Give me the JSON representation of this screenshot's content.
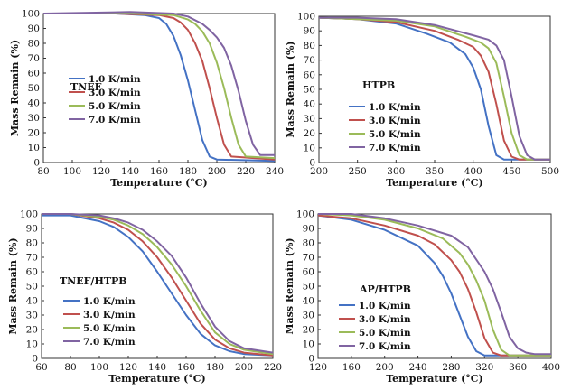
{
  "colors": {
    "1.0 K/min": "#4472c4",
    "3.0 K/min": "#c0504d",
    "5.0 K/min": "#9bbb59",
    "7.0 K/min": "#8064a2"
  },
  "chart_data": [
    {
      "type": "line",
      "title": "TNEF",
      "xlabel": "Temperature (°C)",
      "ylabel": "Mass Remain (%)",
      "xlim": [
        80,
        240
      ],
      "ylim": [
        0,
        100
      ],
      "xticks": [
        80,
        100,
        120,
        140,
        160,
        180,
        200,
        220,
        240
      ],
      "yticks": [
        0,
        10,
        20,
        30,
        40,
        50,
        60,
        70,
        80,
        90,
        100
      ],
      "legend": "middle-left",
      "series": [
        {
          "name": "1.0 K/min",
          "x": [
            80,
            130,
            150,
            160,
            165,
            170,
            175,
            180,
            185,
            190,
            195,
            200,
            240
          ],
          "y": [
            100,
            100,
            99,
            97,
            93,
            85,
            72,
            55,
            35,
            15,
            4,
            2,
            1
          ]
        },
        {
          "name": "3.0 K/min",
          "x": [
            80,
            130,
            160,
            170,
            175,
            180,
            185,
            190,
            195,
            200,
            205,
            210,
            240
          ],
          "y": [
            100,
            100,
            99,
            97,
            94,
            89,
            80,
            68,
            50,
            30,
            12,
            4,
            2
          ]
        },
        {
          "name": "5.0 K/min",
          "x": [
            80,
            140,
            170,
            180,
            185,
            190,
            195,
            200,
            205,
            210,
            215,
            220,
            240
          ],
          "y": [
            100,
            100,
            99,
            96,
            93,
            88,
            80,
            67,
            50,
            30,
            12,
            4,
            3
          ]
        },
        {
          "name": "7.0 K/min",
          "x": [
            80,
            140,
            170,
            180,
            190,
            195,
            200,
            205,
            210,
            215,
            220,
            225,
            230,
            240
          ],
          "y": [
            100,
            101,
            100,
            98,
            93,
            89,
            84,
            77,
            65,
            48,
            28,
            12,
            5,
            5
          ]
        }
      ]
    },
    {
      "type": "line",
      "title": "HTPB",
      "xlabel": "Temperature (°C)",
      "ylabel": "Mass Remain (%)",
      "xlim": [
        200,
        500
      ],
      "ylim": [
        0,
        100
      ],
      "xticks": [
        200,
        250,
        300,
        350,
        400,
        450,
        500
      ],
      "yticks": [
        0,
        10,
        20,
        30,
        40,
        50,
        60,
        70,
        80,
        90,
        100
      ],
      "legend": "middle-center",
      "series": [
        {
          "name": "1.0 K/min",
          "x": [
            200,
            250,
            300,
            340,
            370,
            390,
            400,
            410,
            420,
            430,
            440,
            450,
            500
          ],
          "y": [
            99,
            98,
            95,
            88,
            82,
            74,
            65,
            50,
            25,
            5,
            2,
            2,
            2
          ]
        },
        {
          "name": "3.0 K/min",
          "x": [
            200,
            250,
            300,
            350,
            380,
            400,
            410,
            420,
            430,
            440,
            450,
            460,
            500
          ],
          "y": [
            99,
            98,
            96,
            90,
            84,
            79,
            73,
            62,
            40,
            15,
            4,
            2,
            2
          ]
        },
        {
          "name": "5.0 K/min",
          "x": [
            200,
            250,
            300,
            350,
            390,
            410,
            420,
            430,
            440,
            450,
            460,
            470,
            500
          ],
          "y": [
            99,
            98,
            97,
            93,
            86,
            82,
            78,
            68,
            45,
            20,
            5,
            2,
            2
          ]
        },
        {
          "name": "7.0 K/min",
          "x": [
            200,
            250,
            300,
            350,
            400,
            420,
            430,
            440,
            450,
            460,
            470,
            480,
            500
          ],
          "y": [
            99,
            99,
            98,
            94,
            87,
            84,
            80,
            70,
            45,
            18,
            5,
            2,
            2
          ]
        }
      ]
    },
    {
      "type": "line",
      "title": "TNEF/HTPB",
      "xlabel": "Temperature (°C)",
      "ylabel": "Mass Remain (%)",
      "xlim": [
        60,
        220
      ],
      "ylim": [
        0,
        100
      ],
      "xticks": [
        60,
        80,
        100,
        120,
        140,
        160,
        180,
        200,
        220
      ],
      "yticks": [
        0,
        10,
        20,
        30,
        40,
        50,
        60,
        70,
        80,
        90,
        100
      ],
      "legend": "lower-left",
      "series": [
        {
          "name": "1.0 K/min",
          "x": [
            60,
            80,
            100,
            110,
            120,
            130,
            140,
            150,
            160,
            170,
            180,
            190,
            200,
            220
          ],
          "y": [
            99,
            99,
            95,
            91,
            84,
            74,
            60,
            45,
            30,
            17,
            9,
            5,
            3,
            2
          ]
        },
        {
          "name": "3.0 K/min",
          "x": [
            60,
            80,
            100,
            110,
            120,
            130,
            140,
            150,
            160,
            170,
            180,
            190,
            200,
            220
          ],
          "y": [
            100,
            100,
            97,
            94,
            89,
            81,
            70,
            56,
            40,
            24,
            13,
            7,
            4,
            2
          ]
        },
        {
          "name": "5.0 K/min",
          "x": [
            60,
            80,
            100,
            110,
            120,
            130,
            140,
            150,
            160,
            170,
            180,
            190,
            200,
            220
          ],
          "y": [
            100,
            100,
            98,
            96,
            92,
            86,
            77,
            65,
            50,
            33,
            18,
            10,
            6,
            3
          ]
        },
        {
          "name": "7.0 K/min",
          "x": [
            60,
            80,
            100,
            110,
            120,
            130,
            140,
            150,
            160,
            170,
            180,
            190,
            200,
            220
          ],
          "y": [
            100,
            100,
            99,
            97,
            94,
            89,
            81,
            71,
            56,
            38,
            22,
            12,
            7,
            4
          ]
        }
      ]
    },
    {
      "type": "line",
      "title": "AP/HTPB",
      "xlabel": "Temperature (°C)",
      "ylabel": "Mass Remain (%)",
      "xlim": [
        120,
        400
      ],
      "ylim": [
        0,
        100
      ],
      "xticks": [
        120,
        160,
        200,
        240,
        280,
        320,
        360,
        400
      ],
      "yticks": [
        0,
        10,
        20,
        30,
        40,
        50,
        60,
        70,
        80,
        90,
        100
      ],
      "legend": "lower-left",
      "series": [
        {
          "name": "1.0 K/min",
          "x": [
            120,
            160,
            200,
            240,
            260,
            270,
            280,
            290,
            300,
            310,
            320,
            330,
            400
          ],
          "y": [
            99,
            96,
            89,
            78,
            66,
            57,
            45,
            30,
            15,
            5,
            2,
            2,
            2
          ]
        },
        {
          "name": "3.0 K/min",
          "x": [
            120,
            160,
            200,
            240,
            260,
            280,
            290,
            300,
            310,
            320,
            330,
            340,
            400
          ],
          "y": [
            99,
            97,
            92,
            85,
            79,
            68,
            60,
            48,
            32,
            14,
            4,
            2,
            2
          ]
        },
        {
          "name": "5.0 K/min",
          "x": [
            120,
            160,
            200,
            240,
            270,
            290,
            300,
            310,
            320,
            330,
            340,
            350,
            400
          ],
          "y": [
            100,
            99,
            96,
            90,
            83,
            73,
            65,
            54,
            40,
            20,
            6,
            2,
            2
          ]
        },
        {
          "name": "7.0 K/min",
          "x": [
            120,
            160,
            200,
            240,
            280,
            300,
            320,
            330,
            340,
            350,
            360,
            370,
            380,
            400
          ],
          "y": [
            100,
            100,
            97,
            92,
            85,
            77,
            60,
            48,
            32,
            15,
            7,
            4,
            3,
            3
          ]
        }
      ]
    }
  ]
}
